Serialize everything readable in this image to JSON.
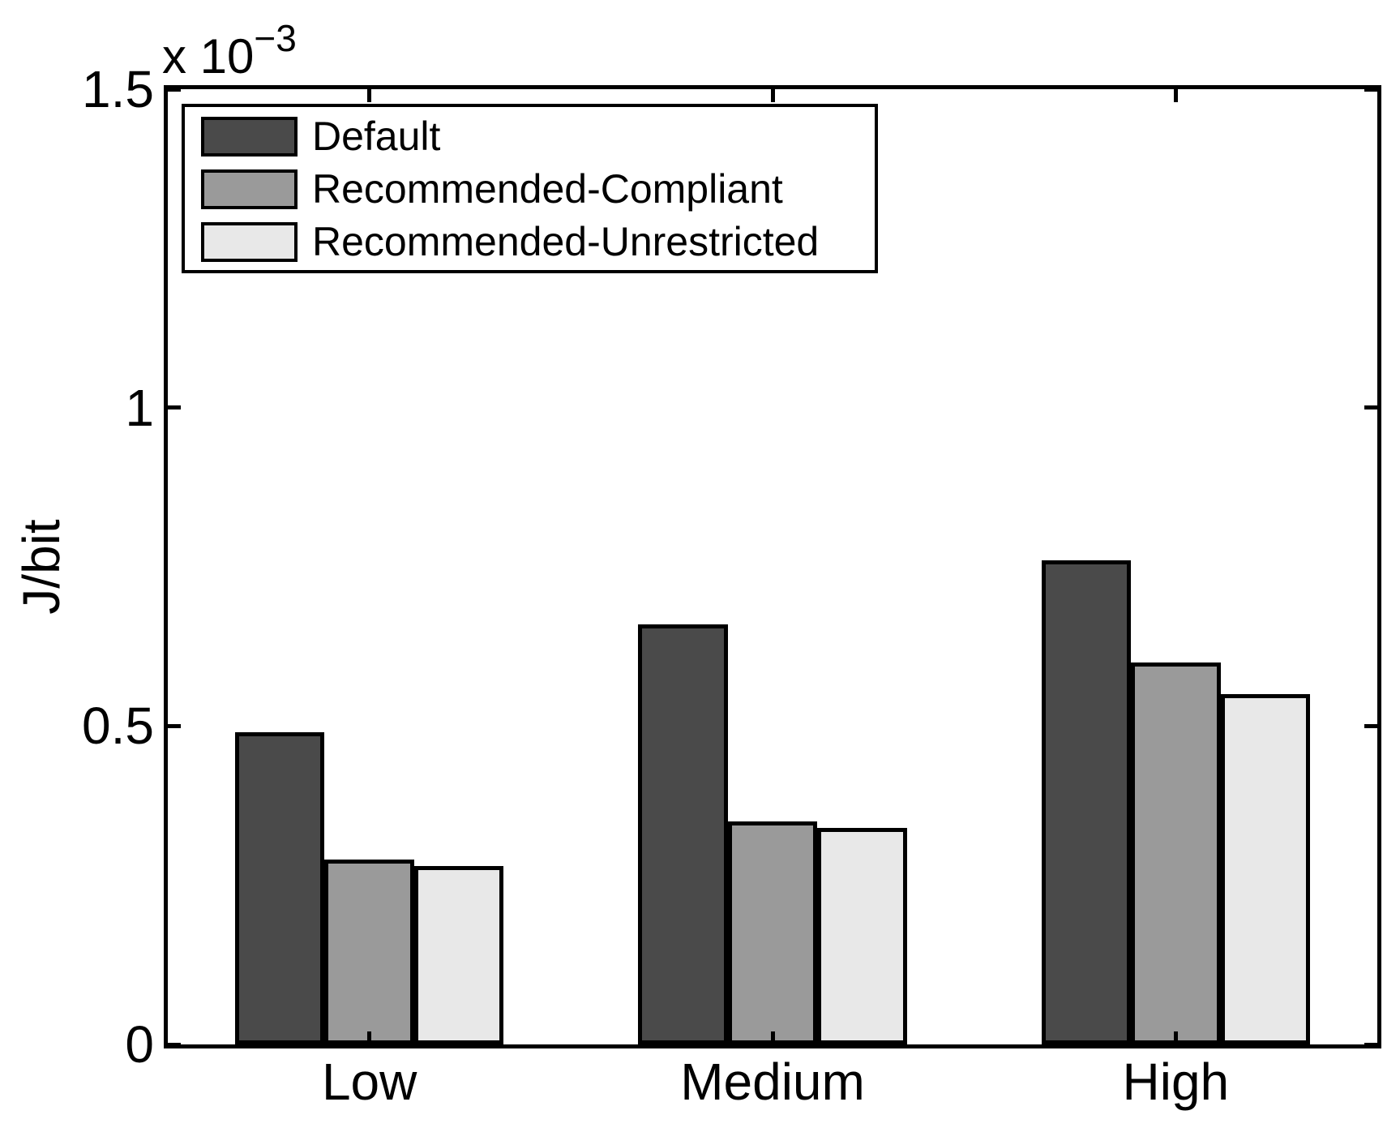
{
  "figure": {
    "background": "#ffffff",
    "axis_color": "#000000"
  },
  "chart_data": {
    "type": "bar",
    "title": "",
    "categories": [
      "Low",
      "Medium",
      "High"
    ],
    "series": [
      {
        "name": "Default",
        "color": "#4a4a4a",
        "values": [
          0.49,
          0.66,
          0.76
        ]
      },
      {
        "name": "Recommended-Compliant",
        "color": "#9a9a9a",
        "values": [
          0.29,
          0.35,
          0.6
        ]
      },
      {
        "name": "Recommended-Unrestricted",
        "color": "#e8e8e8",
        "values": [
          0.28,
          0.34,
          0.55
        ]
      }
    ],
    "value_scale": "1e-3",
    "value_unit": "J/bit",
    "ylabel": "J/bit",
    "xlabel": "",
    "y_multiplier_base": "x 10",
    "y_multiplier_exponent": "−3",
    "ylim": [
      0,
      1.5
    ],
    "yticks": [
      0,
      0.5,
      1,
      1.5
    ],
    "ytick_labels": [
      "0",
      "0.5",
      "1",
      "1.5"
    ],
    "legend_position": "top-left-inside",
    "grid": false,
    "bar_edge_color": "#000000"
  }
}
